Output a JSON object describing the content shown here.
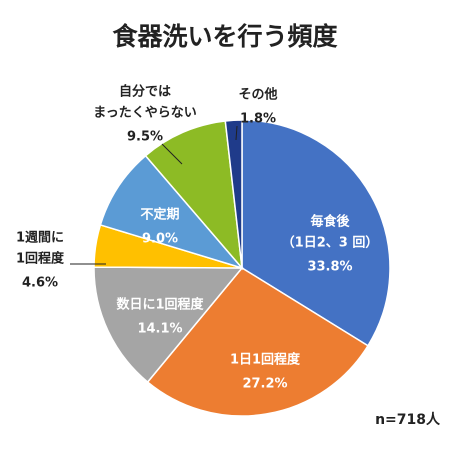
{
  "chart_data": {
    "type": "pie",
    "title": "食器洗いを行う頻度",
    "categories": [
      [
        "毎食後",
        "（1日2、3 回）"
      ],
      [
        "1日1回程度"
      ],
      [
        "数日に1回程度"
      ],
      [
        "1週間に",
        "1回程度"
      ],
      [
        "不定期"
      ],
      [
        "自分では",
        "まったくやらない"
      ],
      [
        "その他"
      ]
    ],
    "values": [
      33.8,
      27.2,
      14.1,
      4.6,
      9.0,
      9.5,
      1.8
    ],
    "value_labels": [
      "33.8%",
      "27.2%",
      "14.1%",
      "4.6%",
      "9.0%",
      "9.5%",
      "1.8%"
    ],
    "colors": [
      "#4472c4",
      "#ed7d31",
      "#a5a5a5",
      "#ffc000",
      "#5b9bd5",
      "#8dbb25",
      "#1f3b8a"
    ],
    "annotation": "n=718人"
  }
}
